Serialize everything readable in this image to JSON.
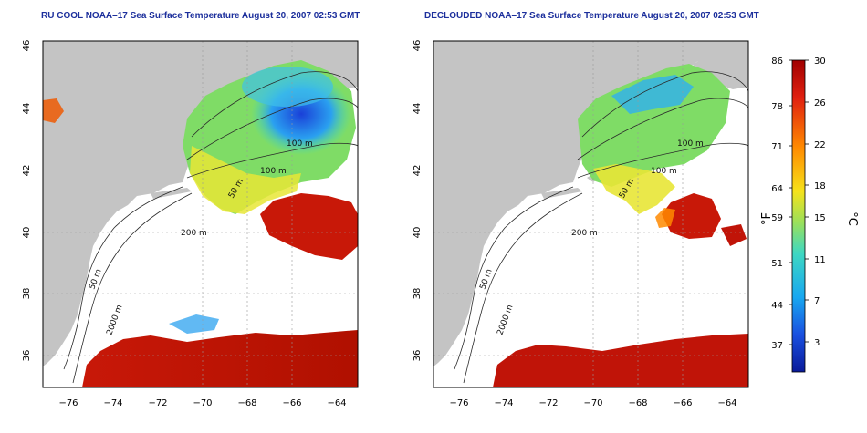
{
  "titles": {
    "left": "RU COOL NOAA–17 Sea Surface Temperature August 20, 2007 02:53 GMT",
    "right": "DECLOUDED NOAA–17 Sea Surface Temperature August 20, 2007 02:53 GMT"
  },
  "axes": {
    "x_ticks": [
      "−76",
      "−74",
      "−72",
      "−70",
      "−68",
      "−66",
      "−64"
    ],
    "y_ticks": [
      "36",
      "38",
      "40",
      "42",
      "44",
      "46"
    ]
  },
  "contour_labels": {
    "left": [
      "100 m",
      "100 m",
      "50 m",
      "200 m",
      "50 m",
      "2000 m"
    ],
    "right": [
      "100 m",
      "100 m",
      "50 m",
      "200 m",
      "50 m",
      "2000 m"
    ]
  },
  "colorbar": {
    "f_ticks": [
      "86",
      "78",
      "71",
      "64",
      "59",
      "51",
      "44",
      "37"
    ],
    "c_ticks": [
      "30",
      "26",
      "22",
      "18",
      "15",
      "11",
      "7",
      "3"
    ],
    "f_label": "°F",
    "c_label": "°C",
    "colors": [
      "#a00000",
      "#e02010",
      "#ff8a00",
      "#f6e21a",
      "#9be05a",
      "#3ed8c2",
      "#18a8f0",
      "#1a50e0",
      "#0a1a9a"
    ]
  },
  "colors": {
    "land": "#c4c4c4",
    "cloud": "#ffffff"
  }
}
